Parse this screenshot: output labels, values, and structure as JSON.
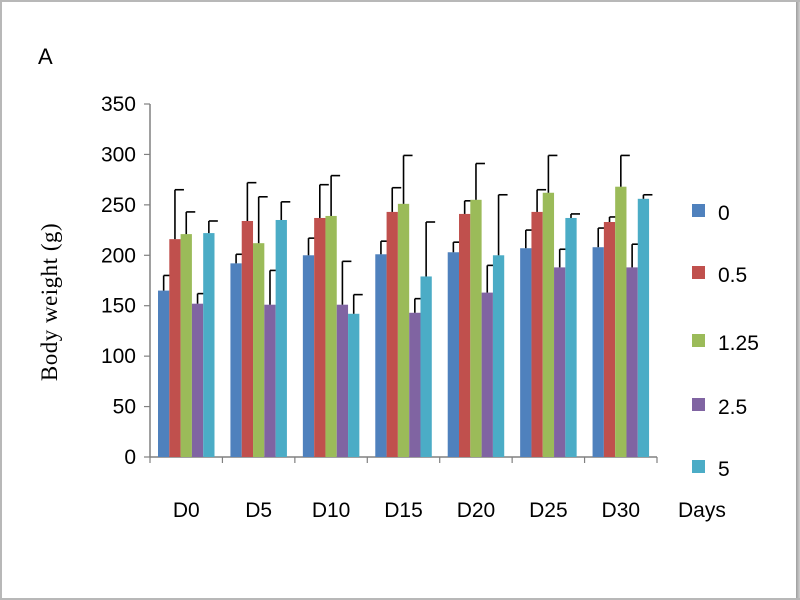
{
  "panel_label": "A",
  "chart_data": {
    "type": "bar",
    "title": "",
    "xlabel": "Days",
    "ylabel": "Body weight (g)",
    "ylim": [
      0,
      350
    ],
    "yticks": [
      0,
      50,
      100,
      150,
      200,
      250,
      300,
      350
    ],
    "grid": false,
    "legend_position": "right",
    "categories": [
      "D0",
      "D5",
      "D10",
      "D15",
      "D20",
      "D25",
      "D30"
    ],
    "series": [
      {
        "name": "0",
        "color": "#4f81bd",
        "values": [
          165,
          192,
          200,
          201,
          203,
          207,
          208
        ],
        "errors": [
          15,
          9,
          17,
          13,
          10,
          18,
          19
        ]
      },
      {
        "name": "0.5",
        "color": "#c0504d",
        "values": [
          216,
          234,
          237,
          243,
          241,
          243,
          233
        ],
        "errors": [
          49,
          38,
          33,
          24,
          13,
          22,
          5
        ]
      },
      {
        "name": "1.25",
        "color": "#9bbb59",
        "values": [
          221,
          212,
          239,
          251,
          255,
          262,
          268
        ],
        "errors": [
          22,
          46,
          40,
          48,
          36,
          37,
          31
        ]
      },
      {
        "name": "2.5",
        "color": "#8064a2",
        "values": [
          152,
          151,
          151,
          143,
          163,
          188,
          188
        ],
        "errors": [
          10,
          34,
          43,
          14,
          27,
          18,
          23
        ]
      },
      {
        "name": "5",
        "color": "#4bacc6",
        "values": [
          222,
          235,
          142,
          179,
          200,
          237,
          256
        ],
        "errors": [
          12,
          18,
          19,
          54,
          60,
          4,
          4
        ]
      }
    ]
  }
}
